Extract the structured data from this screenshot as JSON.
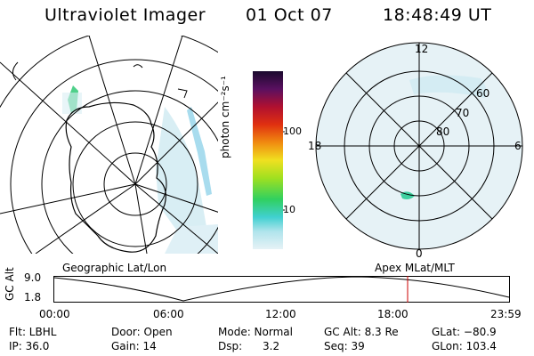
{
  "header": {
    "instrument": "Ultraviolet Imager",
    "date": "01 Oct 07",
    "time": "18:48:49 UT"
  },
  "colorbar": {
    "unit_label": "photon cm⁻²s⁻¹",
    "ticks": [
      "100",
      "10"
    ]
  },
  "polar_grid": {
    "mlt_labels": {
      "top": "12",
      "left": "18",
      "right": "6",
      "bottom": "0"
    },
    "lat_labels": [
      "60",
      "70",
      "80"
    ]
  },
  "timeline": {
    "left_title": "Geographic Lat/Lon",
    "right_title": "Apex MLat/MLT",
    "axis_label": "GC Alt",
    "y_ticks": [
      "9.0",
      "1.8"
    ],
    "x_ticks": [
      "00:00",
      "06:00",
      "12:00",
      "18:00",
      "23:59"
    ],
    "marker_color": "#cc0000"
  },
  "status": {
    "row1": [
      {
        "key": "filter",
        "label": "Flt: LBHL"
      },
      {
        "key": "door",
        "label": "Door: Open"
      },
      {
        "key": "mode",
        "label": "Mode: Normal"
      },
      {
        "key": "gcalt",
        "label": "GC Alt: 8.3 Re"
      },
      {
        "key": "glat",
        "label": "GLat: −80.9"
      }
    ],
    "row2": [
      {
        "key": "ip",
        "label": "IP: 36.0"
      },
      {
        "key": "gain",
        "label": "Gain: 14"
      },
      {
        "key": "dsp",
        "label": "Dsp:      3.2"
      },
      {
        "key": "seq",
        "label": "Seq: 39"
      },
      {
        "key": "glon",
        "label": "GLon: 103.4"
      }
    ]
  }
}
